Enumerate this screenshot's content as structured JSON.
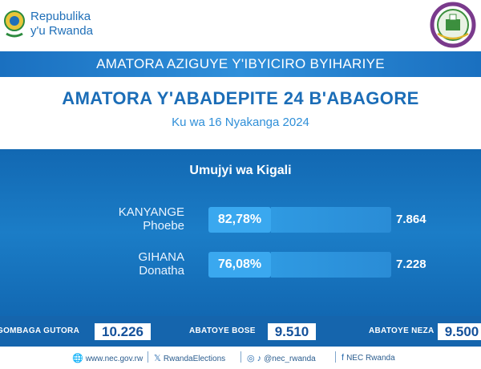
{
  "header": {
    "brand_line1": "Repubulika",
    "brand_line2": "y'u Rwanda"
  },
  "banner": {
    "text": "AMATORA AZIGUYE Y'IBYICIRO BYIHARIYE"
  },
  "title": "AMATORA Y'ABADEPITE 24 B'ABAGORE",
  "date": "Ku wa 16 Nyakanga 2024",
  "region": "Umujyi wa Kigali",
  "candidates": [
    {
      "surname": "KANYANGE",
      "first_name": "Phoebe",
      "percent_label": "82,78%",
      "percent": 82.78,
      "votes": "7.864"
    },
    {
      "surname": "GIHANA",
      "first_name": "Donatha",
      "percent_label": "76,08%",
      "percent": 76.08,
      "votes": "7.228"
    }
  ],
  "stats": {
    "registered_label": "GOMBAGA GUTORA",
    "registered_value": "10.226",
    "voted_label": "ABATOYE BOSE",
    "voted_value": "9.510",
    "valid_label": "ABATOYE NEZA",
    "valid_value": "9.500"
  },
  "footer": {
    "website": "www.nec.gov.rw",
    "x_handle": "RwandaElections",
    "social_handle": "@nec_rwanda",
    "facebook": "NEC Rwanda"
  },
  "colors": {
    "primary_blue": "#1b6db7",
    "panel_blue": "#1268b2",
    "bar_blue": "#3aa8ef",
    "stat_bar": "#1565ad"
  },
  "icons": {
    "left_logo": "rwanda-coat-of-arms",
    "right_logo": "nec-emblem",
    "web": "globe-icon",
    "x": "x-icon",
    "social": "instagram-tiktok-icon",
    "facebook": "facebook-icon"
  }
}
